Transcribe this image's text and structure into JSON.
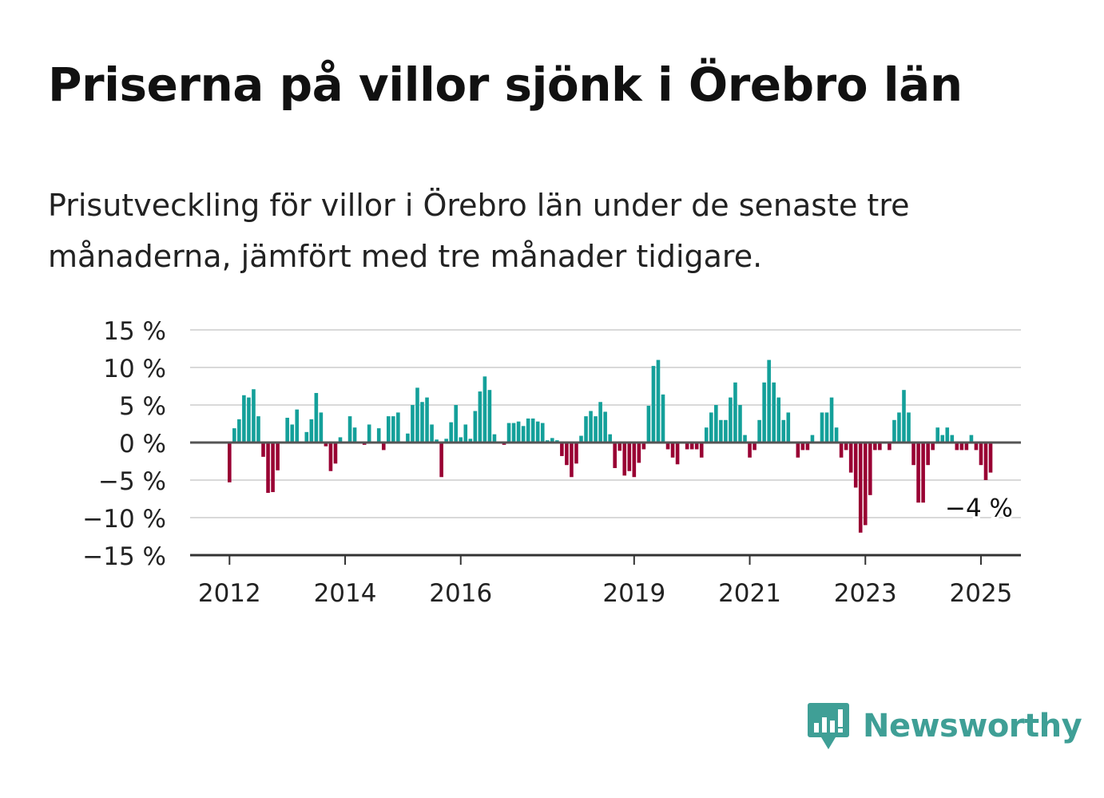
{
  "title": "Priserna på villor sjönk i Örebro län",
  "subtitle": "Prisutveckling för villor i Örebro län under de senaste tre månaderna, jämfört med tre månader tidigare.",
  "logo": {
    "text": "Newsworthy",
    "icon": "bar-chart-badge-icon"
  },
  "colors": {
    "positive": "#14a09a",
    "negative": "#990033",
    "grid": "#d9d9d9",
    "axis": "#333333",
    "logo": "#3f9f96"
  },
  "chart_data": {
    "type": "bar",
    "title": "",
    "xlabel": "",
    "ylabel": "",
    "x_start": "2012-01",
    "x_frequency": "monthly",
    "ylim": [
      -15,
      15
    ],
    "y_ticks": [
      15,
      10,
      5,
      0,
      -5,
      -10,
      -15
    ],
    "y_tick_labels": [
      "15 %",
      "10 %",
      "5 %",
      "0 %",
      "−5 %",
      "−10 %",
      "−15 %"
    ],
    "x_ticks": [
      {
        "label": "2012",
        "month": "2012-01"
      },
      {
        "label": "2014",
        "month": "2014-01"
      },
      {
        "label": "2016",
        "month": "2016-01"
      },
      {
        "label": "2019",
        "month": "2019-01"
      },
      {
        "label": "2021",
        "month": "2021-01"
      },
      {
        "label": "2023",
        "month": "2023-01"
      },
      {
        "label": "2025",
        "month": "2025-01"
      }
    ],
    "grid": true,
    "annotation": {
      "text": "−4 %",
      "month": "2025-01",
      "value": -4
    },
    "values": [
      -5.3,
      1.9,
      3.1,
      6.3,
      6.0,
      7.1,
      3.5,
      -1.9,
      -6.7,
      -6.6,
      -3.7,
      0,
      3.3,
      2.4,
      4.4,
      0,
      1.4,
      3.1,
      6.6,
      4.0,
      -0.5,
      -3.8,
      -2.8,
      0.7,
      0,
      3.5,
      2.0,
      0,
      -0.3,
      2.4,
      0,
      1.9,
      -1.0,
      3.5,
      3.5,
      4.0,
      0,
      1.2,
      5.0,
      7.3,
      5.4,
      6.0,
      2.4,
      0.4,
      -4.6,
      0.5,
      2.7,
      5.0,
      0.7,
      2.4,
      0.5,
      4.2,
      6.8,
      8.8,
      7.0,
      1.1,
      0,
      -0.3,
      2.6,
      2.6,
      2.8,
      2.2,
      3.2,
      3.2,
      2.8,
      2.6,
      0.3,
      0.6,
      0.3,
      -1.8,
      -3.0,
      -4.6,
      -2.8,
      0.9,
      3.5,
      4.2,
      3.5,
      5.4,
      4.1,
      1.1,
      -3.4,
      -1.1,
      -4.4,
      -3.8,
      -4.6,
      -2.7,
      -0.9,
      4.9,
      10.2,
      11.0,
      6.4,
      -0.9,
      -2.0,
      -2.9,
      0,
      -0.9,
      -0.9,
      -0.9,
      -2.0,
      2.0,
      4.0,
      5.0,
      3.0,
      3.0,
      6.0,
      8.0,
      5.0,
      1.0,
      -2.0,
      -1.0,
      3.0,
      8.0,
      11.0,
      8.0,
      6.0,
      3.0,
      4.0,
      0,
      -2.0,
      -1.0,
      -1.0,
      1.0,
      0,
      4.0,
      4.0,
      6.0,
      2.0,
      -2.0,
      -1.0,
      -4.0,
      -6.0,
      -12.0,
      -11.0,
      -7.0,
      -1.0,
      -1.0,
      0,
      -1.0,
      3.0,
      4.0,
      7.0,
      4.0,
      -3.0,
      -8.0,
      -8.0,
      -3.0,
      -1.0,
      2.0,
      1.0,
      2.0,
      1.0,
      -1.0,
      -1.0,
      -1.0,
      1.0,
      -1.0,
      -3.0,
      -5.0,
      -4.0
    ]
  }
}
